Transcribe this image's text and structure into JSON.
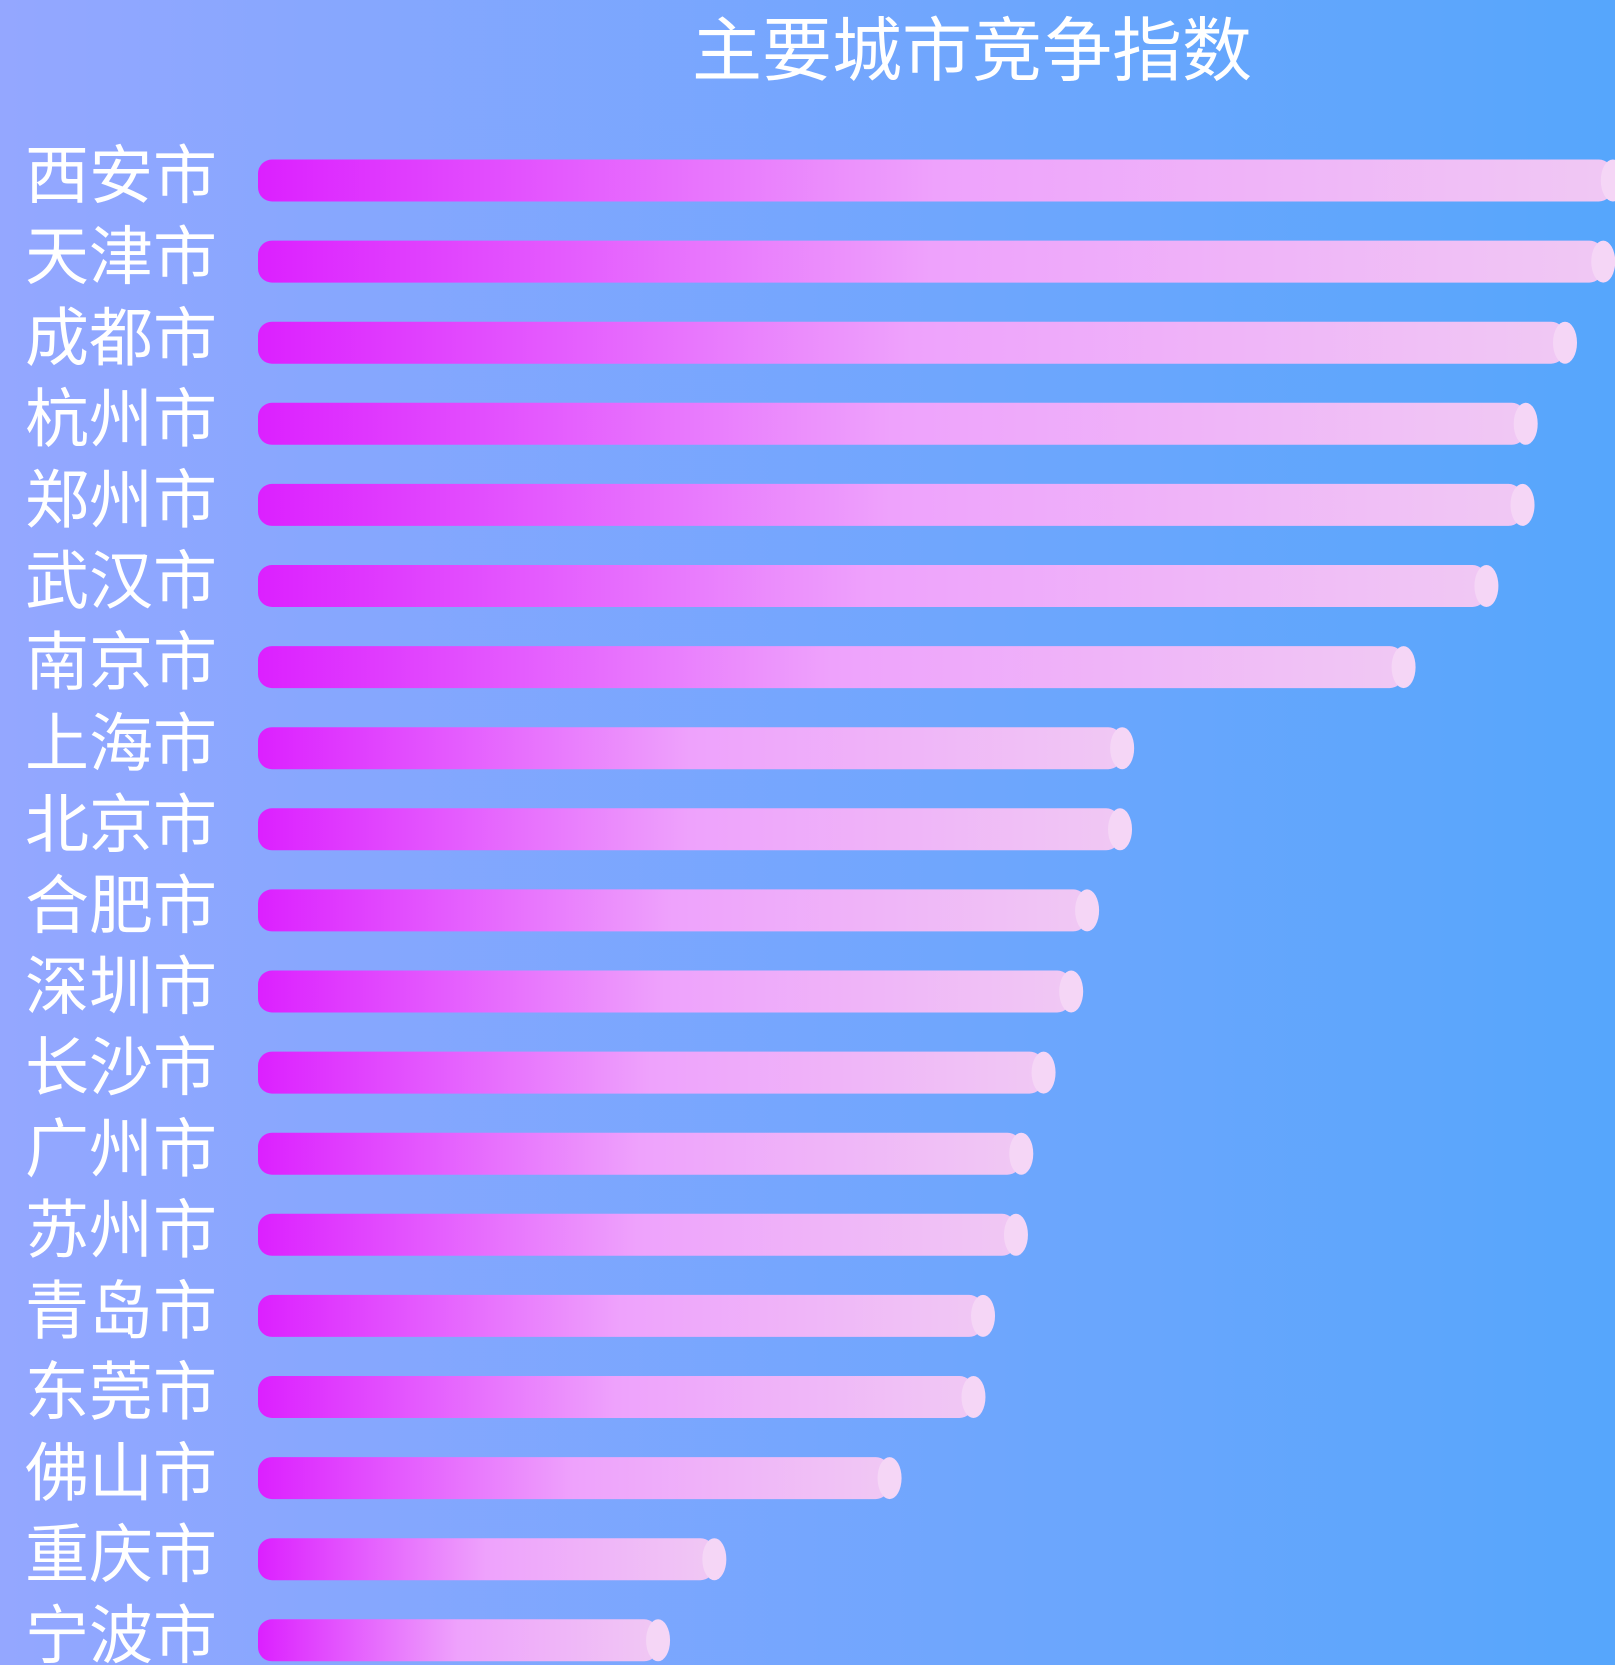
{
  "chart_data": {
    "type": "barh",
    "title": "主要城市竞争指数",
    "categories": [
      "西安市",
      "天津市",
      "成都市",
      "杭州市",
      "郑州市",
      "武汉市",
      "南京市",
      "上海市",
      "北京市",
      "合肥市",
      "深圳市",
      "长沙市",
      "广州市",
      "苏州市",
      "青岛市",
      "东莞市",
      "佛山市",
      "重庆市",
      "宁波市"
    ],
    "values": [
      1287,
      1278,
      1242,
      1205,
      1202,
      1168,
      1090,
      825,
      823,
      792,
      777,
      751,
      730,
      725,
      694,
      685,
      606,
      441,
      388
    ],
    "xlim": [
      0,
      1290
    ]
  }
}
